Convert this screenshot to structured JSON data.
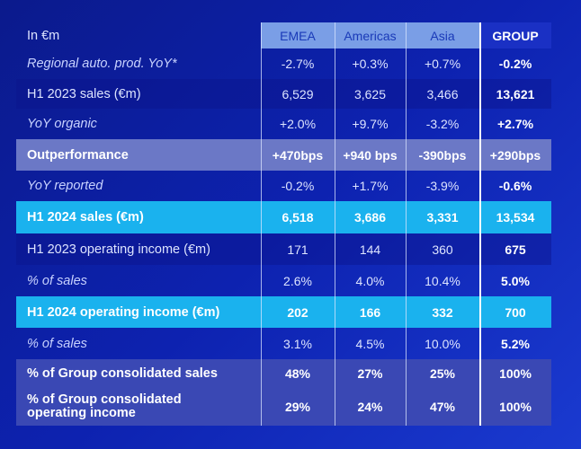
{
  "header": {
    "label": "In €m",
    "columns": [
      "EMEA",
      "Americas",
      "Asia",
      "GROUP"
    ]
  },
  "rows": [
    {
      "label": "Regional auto. prod. YoY*",
      "values": [
        "-2.7%",
        "+0.3%",
        "+0.7%",
        "-0.2%"
      ]
    },
    {
      "label": "H1 2023 sales (€m)",
      "values": [
        "6,529",
        "3,625",
        "3,466",
        "13,621"
      ]
    },
    {
      "label": "YoY organic",
      "values": [
        "+2.0%",
        "+9.7%",
        "-3.2%",
        "+2.7%"
      ]
    },
    {
      "label": "Outperformance",
      "values": [
        "+470bps",
        "+940 bps",
        "-390bps",
        "+290bps"
      ]
    },
    {
      "label": "YoY reported",
      "values": [
        "-0.2%",
        "+1.7%",
        "-3.9%",
        "-0.6%"
      ]
    },
    {
      "label": "H1 2024 sales (€m)",
      "values": [
        "6,518",
        "3,686",
        "3,331",
        "13,534"
      ]
    },
    {
      "label": "H1 2023 operating income (€m)",
      "values": [
        "171",
        "144",
        "360",
        "675"
      ]
    },
    {
      "label": "% of sales",
      "values": [
        "2.6%",
        "4.0%",
        "10.4%",
        "5.0%"
      ]
    },
    {
      "label": "H1 2024 operating income (€m)",
      "values": [
        "202",
        "166",
        "332",
        "700"
      ]
    },
    {
      "label": "% of sales",
      "values": [
        "3.1%",
        "4.5%",
        "10.0%",
        "5.2%"
      ]
    },
    {
      "label": "% of Group consolidated sales",
      "values": [
        "48%",
        "27%",
        "25%",
        "100%"
      ]
    },
    {
      "label": "% of Group  consolidated operating income",
      "values": [
        "29%",
        "24%",
        "47%",
        "100%"
      ]
    }
  ],
  "colors": {
    "background": "#0d22b0",
    "header_cell": "#7a9ee6",
    "group_header": "#1a30c4",
    "outperformance": "#6b78c6",
    "highlight": "#1ab2ee",
    "share_rows": "#3a48b4"
  }
}
